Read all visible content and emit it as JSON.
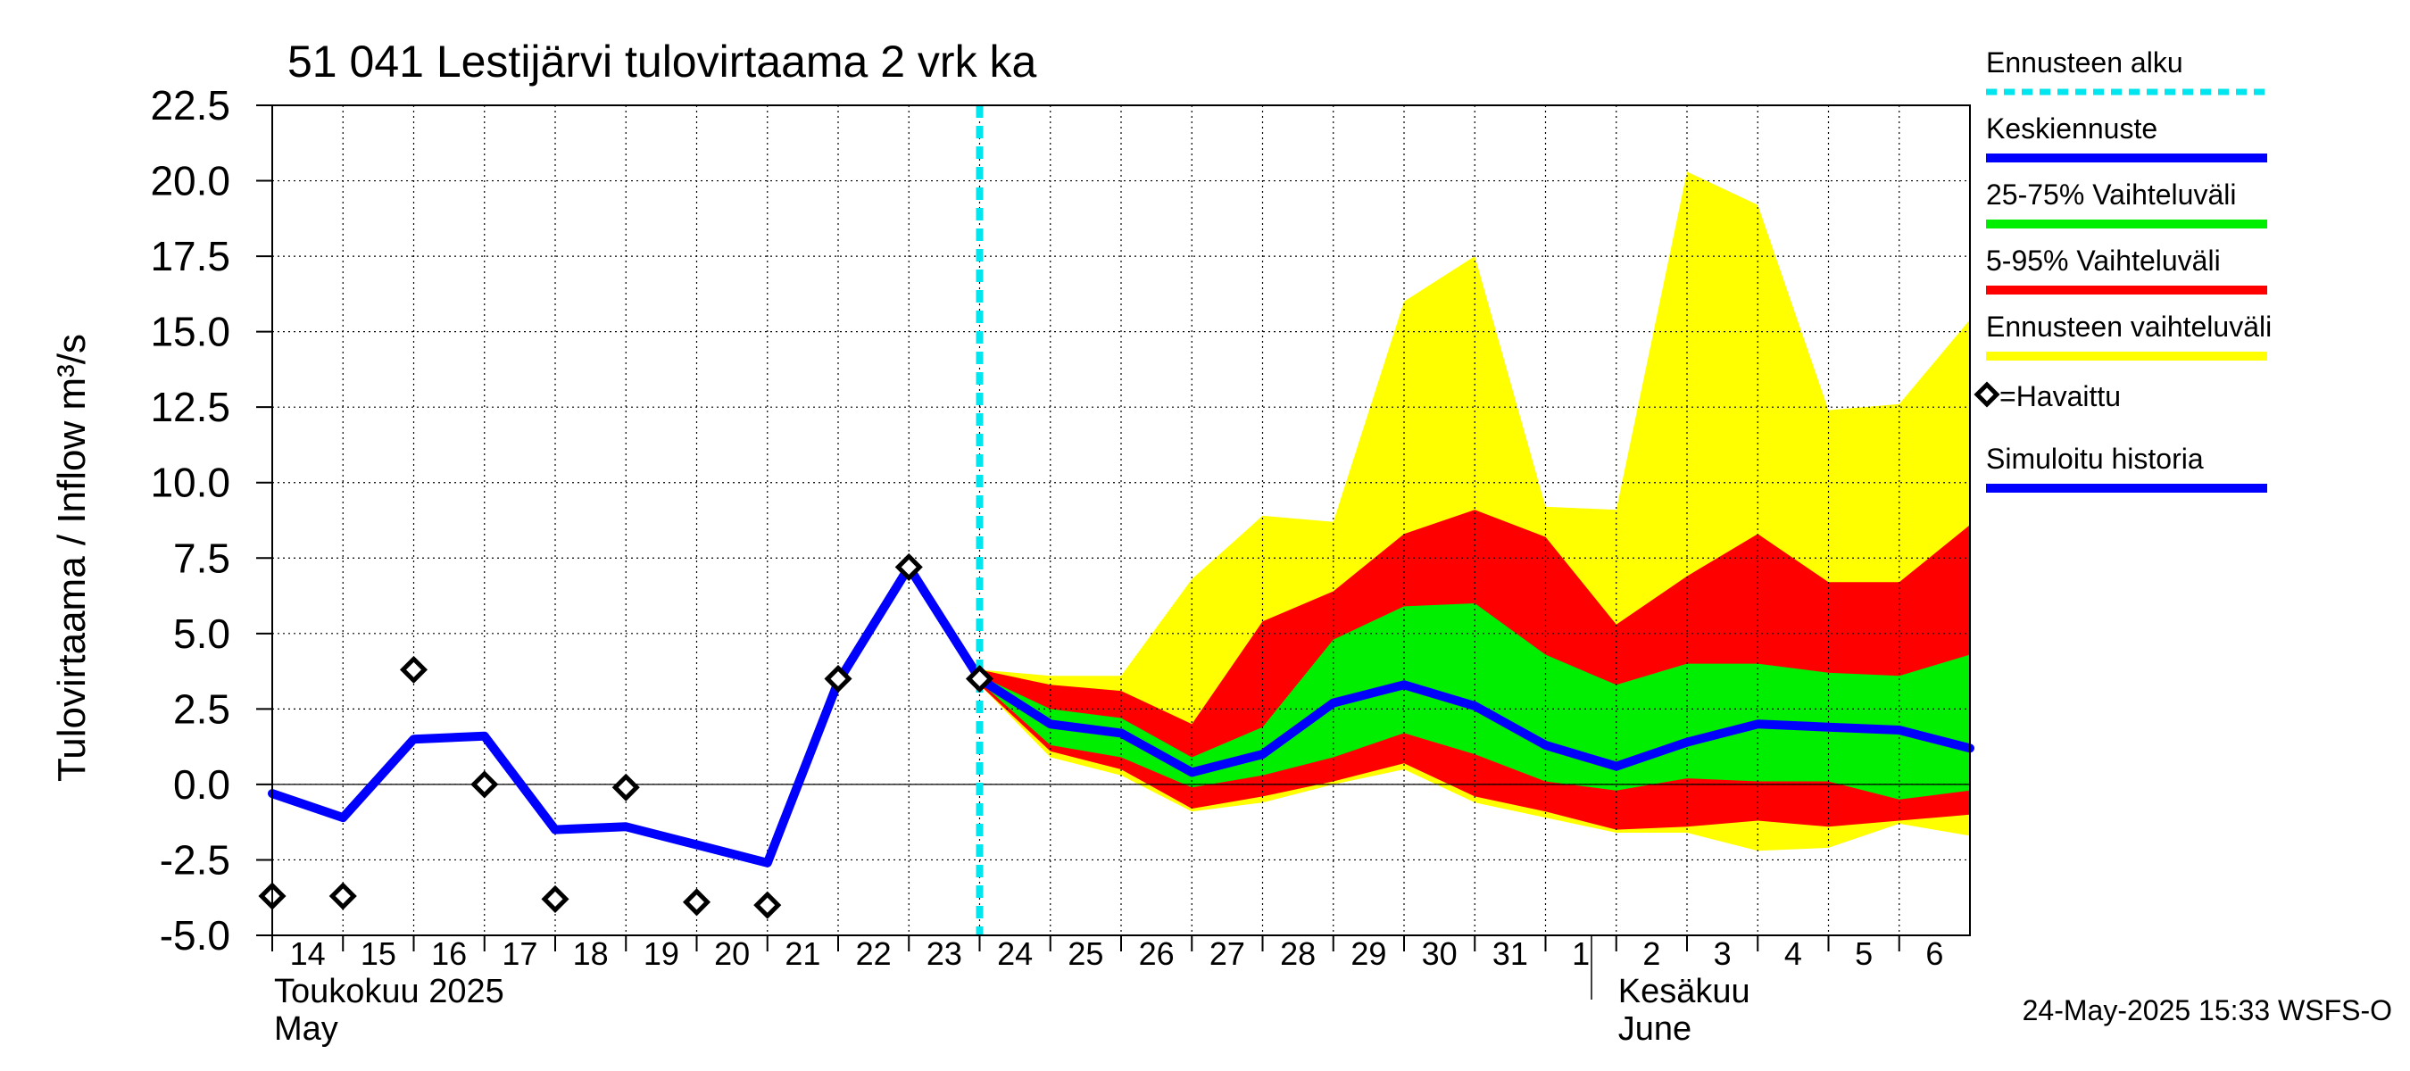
{
  "chart_data": {
    "type": "area",
    "title": "51 041 Lestijärvi tulovirtaama 2 vrk ka",
    "ylabel": "Tulovirtaama / Inflow    m³/s",
    "ylim": [
      -5.0,
      22.5
    ],
    "yticks": [
      -5.0,
      -2.5,
      0.0,
      2.5,
      5.0,
      7.5,
      10.0,
      12.5,
      15.0,
      17.5,
      20.0,
      22.5
    ],
    "ytick_labels": [
      "-5.0",
      "-2.5",
      "0.0",
      "2.5",
      "5.0",
      "7.5",
      "10.0",
      "12.5",
      "15.0",
      "17.5",
      "20.0",
      "22.5"
    ],
    "xlim": [
      0,
      24
    ],
    "day_labels": [
      "14",
      "15",
      "16",
      "17",
      "18",
      "19",
      "20",
      "21",
      "22",
      "23",
      "24",
      "25",
      "26",
      "27",
      "28",
      "29",
      "30",
      "31",
      "1",
      "2",
      "3",
      "4",
      "5",
      "6"
    ],
    "month_labels": [
      {
        "line1": "Toukokuu  2025",
        "line2": "May",
        "at": 0
      },
      {
        "line1": "Kesäkuu",
        "line2": "June",
        "at": 19
      }
    ],
    "month_separator": 18.65,
    "forecast_start": 10,
    "timestamp": "24-May-2025 15:33 WSFS-O",
    "colors": {
      "forecast_start": "#00e5ee",
      "median": "#0000ff",
      "p25_75": "#00ee00",
      "p5_95": "#ff0000",
      "range": "#ffff00",
      "observed": "#000000",
      "history": "#0000ff"
    },
    "legend": [
      {
        "label": "Ennusteen alku",
        "key": "forecast_start",
        "style": "dashed"
      },
      {
        "label": "Keskiennuste",
        "key": "median",
        "style": "line"
      },
      {
        "label": "25-75% Vaihteluväli",
        "key": "p25_75",
        "style": "line"
      },
      {
        "label": "5-95% Vaihteluväli",
        "key": "p5_95",
        "style": "line"
      },
      {
        "label": "Ennusteen vaihteluväli",
        "key": "range",
        "style": "line"
      },
      {
        "label": "=Havaittu",
        "key": "observed",
        "style": "marker"
      },
      {
        "label": "Simuloitu historia",
        "key": "history",
        "style": "line"
      }
    ],
    "series": {
      "history": {
        "name": "Simuloitu historia",
        "x": [
          0,
          1,
          2,
          3,
          4,
          5,
          6,
          7,
          8,
          9,
          10
        ],
        "y": [
          -0.3,
          -1.1,
          1.5,
          1.6,
          -1.5,
          -1.4,
          -2.0,
          -2.6,
          3.4,
          7.2,
          3.5
        ]
      },
      "observed": {
        "name": "Havaittu",
        "x": [
          0,
          1,
          2,
          3,
          4,
          5,
          6,
          7,
          8,
          9,
          10
        ],
        "y": [
          -3.7,
          -3.7,
          3.8,
          0.0,
          -3.8,
          -0.1,
          -3.9,
          -4.0,
          3.5,
          7.2,
          3.5
        ]
      },
      "median": {
        "name": "Keskiennuste",
        "x": [
          10,
          11,
          12,
          13,
          14,
          15,
          16,
          17,
          18,
          19,
          20,
          21,
          22,
          23,
          24
        ],
        "y": [
          3.5,
          2.0,
          1.7,
          0.4,
          1.0,
          2.7,
          3.3,
          2.6,
          1.3,
          0.6,
          1.4,
          2.0,
          1.9,
          1.8,
          1.2
        ]
      },
      "range": {
        "name": "Ennusteen vaihteluväli",
        "x": [
          10,
          11,
          12,
          13,
          14,
          15,
          16,
          17,
          18,
          19,
          20,
          21,
          22,
          23,
          24
        ],
        "high": [
          3.8,
          3.6,
          3.6,
          6.8,
          8.9,
          8.7,
          16.0,
          17.5,
          9.2,
          9.1,
          20.3,
          19.2,
          12.4,
          12.6,
          15.4
        ],
        "low": [
          3.3,
          0.9,
          0.3,
          -0.9,
          -0.6,
          0.0,
          0.5,
          -0.6,
          -1.1,
          -1.6,
          -1.6,
          -2.2,
          -2.1,
          -1.3,
          -1.7
        ]
      },
      "p5_95": {
        "name": "5-95% Vaihteluväli",
        "x": [
          10,
          11,
          12,
          13,
          14,
          15,
          16,
          17,
          18,
          19,
          20,
          21,
          22,
          23,
          24
        ],
        "high": [
          3.8,
          3.3,
          3.1,
          2.0,
          5.4,
          6.4,
          8.3,
          9.1,
          8.2,
          5.3,
          6.9,
          8.3,
          6.7,
          6.7,
          8.6
        ],
        "low": [
          3.3,
          1.1,
          0.5,
          -0.8,
          -0.4,
          0.1,
          0.7,
          -0.4,
          -0.9,
          -1.5,
          -1.4,
          -1.2,
          -1.4,
          -1.2,
          -1.0
        ]
      },
      "p25_75": {
        "name": "25-75% Vaihteluväli",
        "x": [
          10,
          11,
          12,
          13,
          14,
          15,
          16,
          17,
          18,
          19,
          20,
          21,
          22,
          23,
          24
        ],
        "high": [
          3.6,
          2.5,
          2.2,
          0.9,
          1.9,
          4.8,
          5.9,
          6.0,
          4.3,
          3.3,
          4.0,
          4.0,
          3.7,
          3.6,
          4.3
        ],
        "low": [
          3.4,
          1.3,
          0.9,
          -0.1,
          0.3,
          0.9,
          1.7,
          1.0,
          0.1,
          -0.2,
          0.2,
          0.1,
          0.1,
          -0.5,
          -0.2
        ]
      }
    }
  }
}
